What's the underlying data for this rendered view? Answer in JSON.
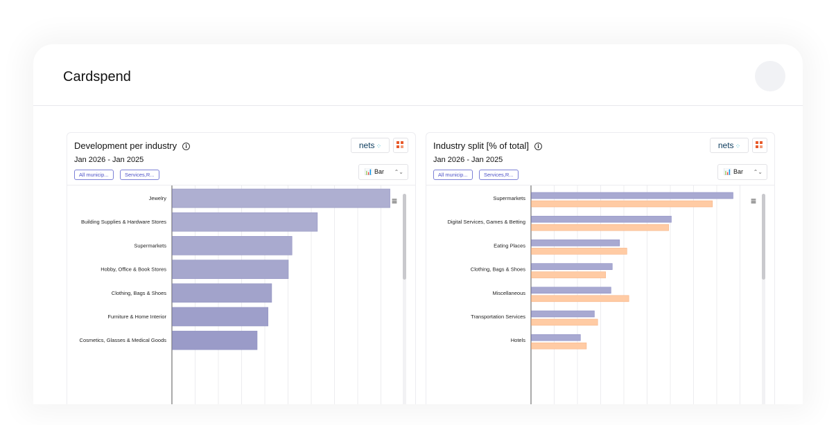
{
  "app": {
    "title": "Cardspend"
  },
  "cards": [
    {
      "title": "Development per industry",
      "date_range": "Jan 2026 - Jan 2025",
      "filters": [
        "All municip...",
        "Services,R..."
      ],
      "chart_type_label": "Bar",
      "brand": "nets",
      "chart_data": {
        "type": "bar",
        "orientation": "horizontal",
        "categories": [
          "Jewelry",
          "Building Supplies & Hardware Stores",
          "Supermarkets",
          "Hobby, Office & Book Stores",
          "Clothing, Bags & Shoes",
          "Furniture & Home Interior",
          "Cosmetics, Glasses & Medical Goods"
        ],
        "series": [
          {
            "values": [
              300,
              200,
              165,
              160,
              137,
              132,
              117
            ]
          }
        ],
        "colors": [
          "#aeafd1",
          "#acadd0",
          "#a9aacf",
          "#a6a7cd",
          "#a2a3cb",
          "#9e9fca",
          "#9a9bc8"
        ],
        "xlim": [
          0,
          320
        ],
        "grid": true,
        "legend": "none"
      }
    },
    {
      "title": "Industry split [% of total]",
      "date_range": "Jan 2026 - Jan 2025",
      "filters": [
        "All municip...",
        "Services,R..."
      ],
      "chart_type_label": "Bar",
      "brand": "nets",
      "chart_data": {
        "type": "bar",
        "orientation": "horizontal",
        "categories": [
          "Supermarkets",
          "Digital Services, Games & Betting",
          "Eating Places",
          "Clothing, Bags & Shoes",
          "Miscellaneous",
          "Transportation Services",
          "Hotels"
        ],
        "series": [
          {
            "values": [
              30.4,
              21.1,
              13.3,
              12.2,
              12.0,
              9.5,
              7.4
            ]
          },
          {
            "values": [
              27.3,
              20.7,
              14.4,
              11.2,
              14.7,
              10.0,
              8.3
            ]
          }
        ],
        "colors": [
          "#a8a9d1",
          "#ffcba4"
        ],
        "xlim": [
          0,
          35
        ],
        "grid": true,
        "legend": "none"
      }
    }
  ]
}
